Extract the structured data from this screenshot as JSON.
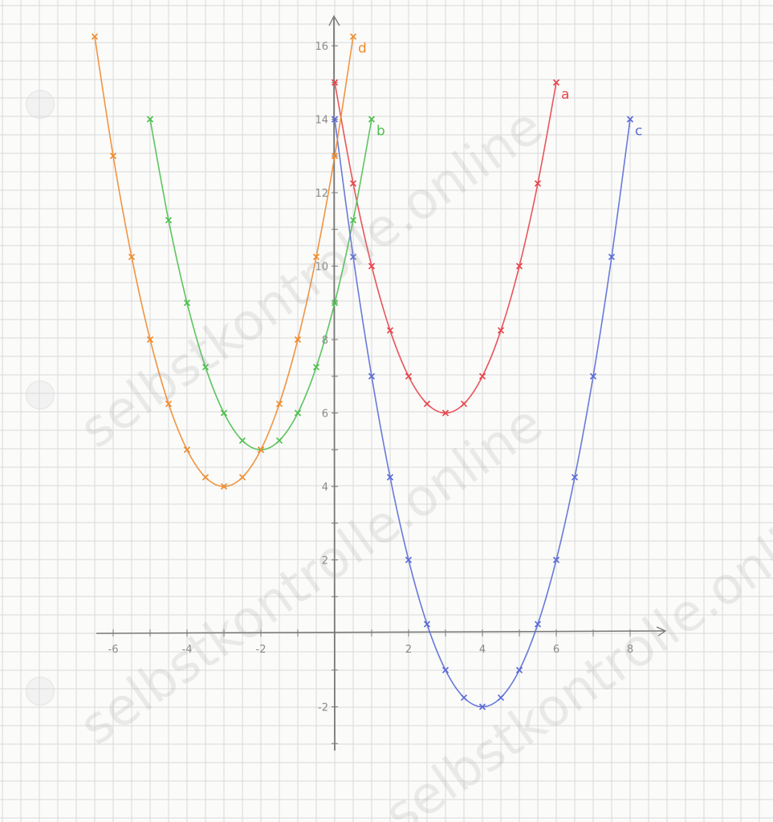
{
  "chart_data": {
    "type": "line",
    "title": "",
    "xlabel": "",
    "ylabel": "",
    "xlim": [
      -6.6,
      9
    ],
    "ylim": [
      -3.2,
      16.5
    ],
    "grid": true,
    "x_ticks": [
      -6,
      -4,
      -2,
      2,
      4,
      6,
      8
    ],
    "y_ticks": [
      -2,
      2,
      4,
      6,
      8,
      10,
      12,
      14,
      16
    ],
    "series": [
      {
        "name": "a",
        "color": "#e8434a",
        "x": [
          0,
          0.5,
          1,
          1.5,
          2,
          2.5,
          3,
          3.5,
          4,
          4.5,
          5,
          5.5,
          6
        ],
        "y": [
          15,
          12.25,
          10,
          8.25,
          7,
          6.25,
          6,
          6.25,
          7,
          8.25,
          10,
          12.25,
          15
        ]
      },
      {
        "name": "b",
        "color": "#4cbf4c",
        "x": [
          -5,
          -4.5,
          -4,
          -3.5,
          -3,
          -2.5,
          -2,
          -1.5,
          -1,
          -0.5,
          0,
          0.5,
          1
        ],
        "y": [
          14,
          11.25,
          9,
          7.25,
          6,
          5.25,
          5,
          5.25,
          6,
          7.25,
          9,
          11.25,
          14
        ]
      },
      {
        "name": "c",
        "color": "#5a6bd6",
        "x": [
          0,
          0.5,
          1,
          1.5,
          2,
          2.5,
          3,
          3.5,
          4,
          4.5,
          5,
          5.5,
          6,
          6.5,
          7,
          7.5,
          8
        ],
        "y": [
          14,
          10.25,
          7,
          4.25,
          2,
          0.25,
          -1,
          -1.75,
          -2,
          -1.75,
          -1,
          0.25,
          2,
          4.25,
          7,
          10.25,
          14
        ]
      },
      {
        "name": "d",
        "color": "#f08a2c",
        "x": [
          -6.5,
          -6,
          -5.5,
          -5,
          -4.5,
          -4,
          -3.5,
          -3,
          -2.5,
          -2,
          -1.5,
          -1,
          -0.5,
          0,
          0.5
        ],
        "y": [
          16.25,
          13,
          10.25,
          8,
          6.25,
          5,
          4.25,
          4,
          4.25,
          5,
          6.25,
          8,
          10.25,
          13,
          16.25
        ]
      }
    ]
  },
  "watermark": "selbstkontrolle.online"
}
